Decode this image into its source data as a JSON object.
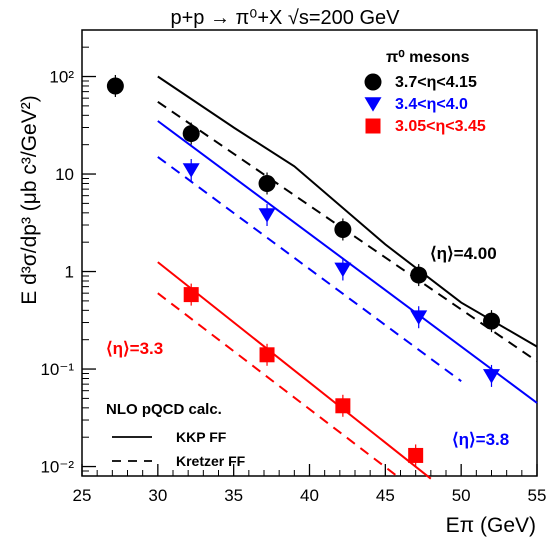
{
  "chart_data": {
    "type": "scatter",
    "title": "p+p → π⁰+X   √s=200 GeV",
    "xlabel": "Eπ (GeV)",
    "ylabel": "E d³σ/dp³ (μb c³/GeV²)",
    "xlim": [
      25,
      55
    ],
    "ylim": [
      0.008,
      300
    ],
    "log_y": true,
    "x_ticks": [
      "25",
      "30",
      "35",
      "40",
      "45",
      "50",
      "55"
    ],
    "y_ticks": [
      "10⁻²",
      "10⁻¹",
      "1",
      "10",
      "10²"
    ],
    "legend_title": "π⁰ mesons",
    "series": [
      {
        "name": "3.7<η<4.15",
        "marker": "circle",
        "color": "#000000",
        "points": [
          {
            "x": 27.2,
            "y": 80
          },
          {
            "x": 32.2,
            "y": 26
          },
          {
            "x": 37.2,
            "y": 8
          },
          {
            "x": 42.2,
            "y": 2.7
          },
          {
            "x": 47.2,
            "y": 0.92
          },
          {
            "x": 52.0,
            "y": 0.31
          }
        ]
      },
      {
        "name": "3.4<η<4.0",
        "marker": "triangle-down",
        "color": "#0000ff",
        "points": [
          {
            "x": 32.2,
            "y": 11
          },
          {
            "x": 37.2,
            "y": 3.8
          },
          {
            "x": 42.2,
            "y": 1.05
          },
          {
            "x": 47.2,
            "y": 0.34
          },
          {
            "x": 52.0,
            "y": 0.085
          }
        ]
      },
      {
        "name": "3.05<η<3.45",
        "marker": "square",
        "color": "#ff0000",
        "points": [
          {
            "x": 32.2,
            "y": 0.58
          },
          {
            "x": 37.2,
            "y": 0.14
          },
          {
            "x": 42.2,
            "y": 0.042
          },
          {
            "x": 47.0,
            "y": 0.013
          }
        ]
      }
    ],
    "curves": [
      {
        "label": "KKP FF",
        "color": "#000000",
        "style": "solid",
        "points": [
          [
            30,
            100
          ],
          [
            35,
            30
          ],
          [
            39,
            12
          ],
          [
            45,
            1.9
          ],
          [
            50,
            0.48
          ],
          [
            55,
            0.17
          ]
        ]
      },
      {
        "label": "Kretzer FF",
        "color": "#000000",
        "style": "dashed",
        "points": [
          [
            30,
            55
          ],
          [
            55,
            0.12
          ]
        ]
      },
      {
        "label": "KKP FF",
        "color": "#0000ff",
        "style": "solid",
        "points": [
          [
            30,
            35
          ],
          [
            55,
            0.045
          ]
        ]
      },
      {
        "label": "Kretzer FF",
        "color": "#0000ff",
        "style": "dashed",
        "points": [
          [
            30,
            15
          ],
          [
            50,
            0.075
          ]
        ]
      },
      {
        "label": "KKP FF",
        "color": "#ff0000",
        "style": "solid",
        "points": [
          [
            30,
            1.25
          ],
          [
            48,
            0.0075
          ]
        ]
      },
      {
        "label": "Kretzer FF",
        "color": "#ff0000",
        "style": "dashed",
        "points": [
          [
            30,
            0.6
          ],
          [
            46,
            0.0075
          ]
        ]
      }
    ],
    "annotations": [
      {
        "text": "⟨η⟩=4.00",
        "color": "#000000"
      },
      {
        "text": "⟨η⟩=3.3",
        "color": "#ff0000"
      },
      {
        "text": "⟨η⟩=3.8",
        "color": "#0000ff"
      }
    ],
    "calc_legend": {
      "title": "NLO pQCD calc.",
      "entries": [
        {
          "label": "KKP FF",
          "style": "solid"
        },
        {
          "label": "Kretzer FF",
          "style": "dashed"
        }
      ]
    }
  }
}
